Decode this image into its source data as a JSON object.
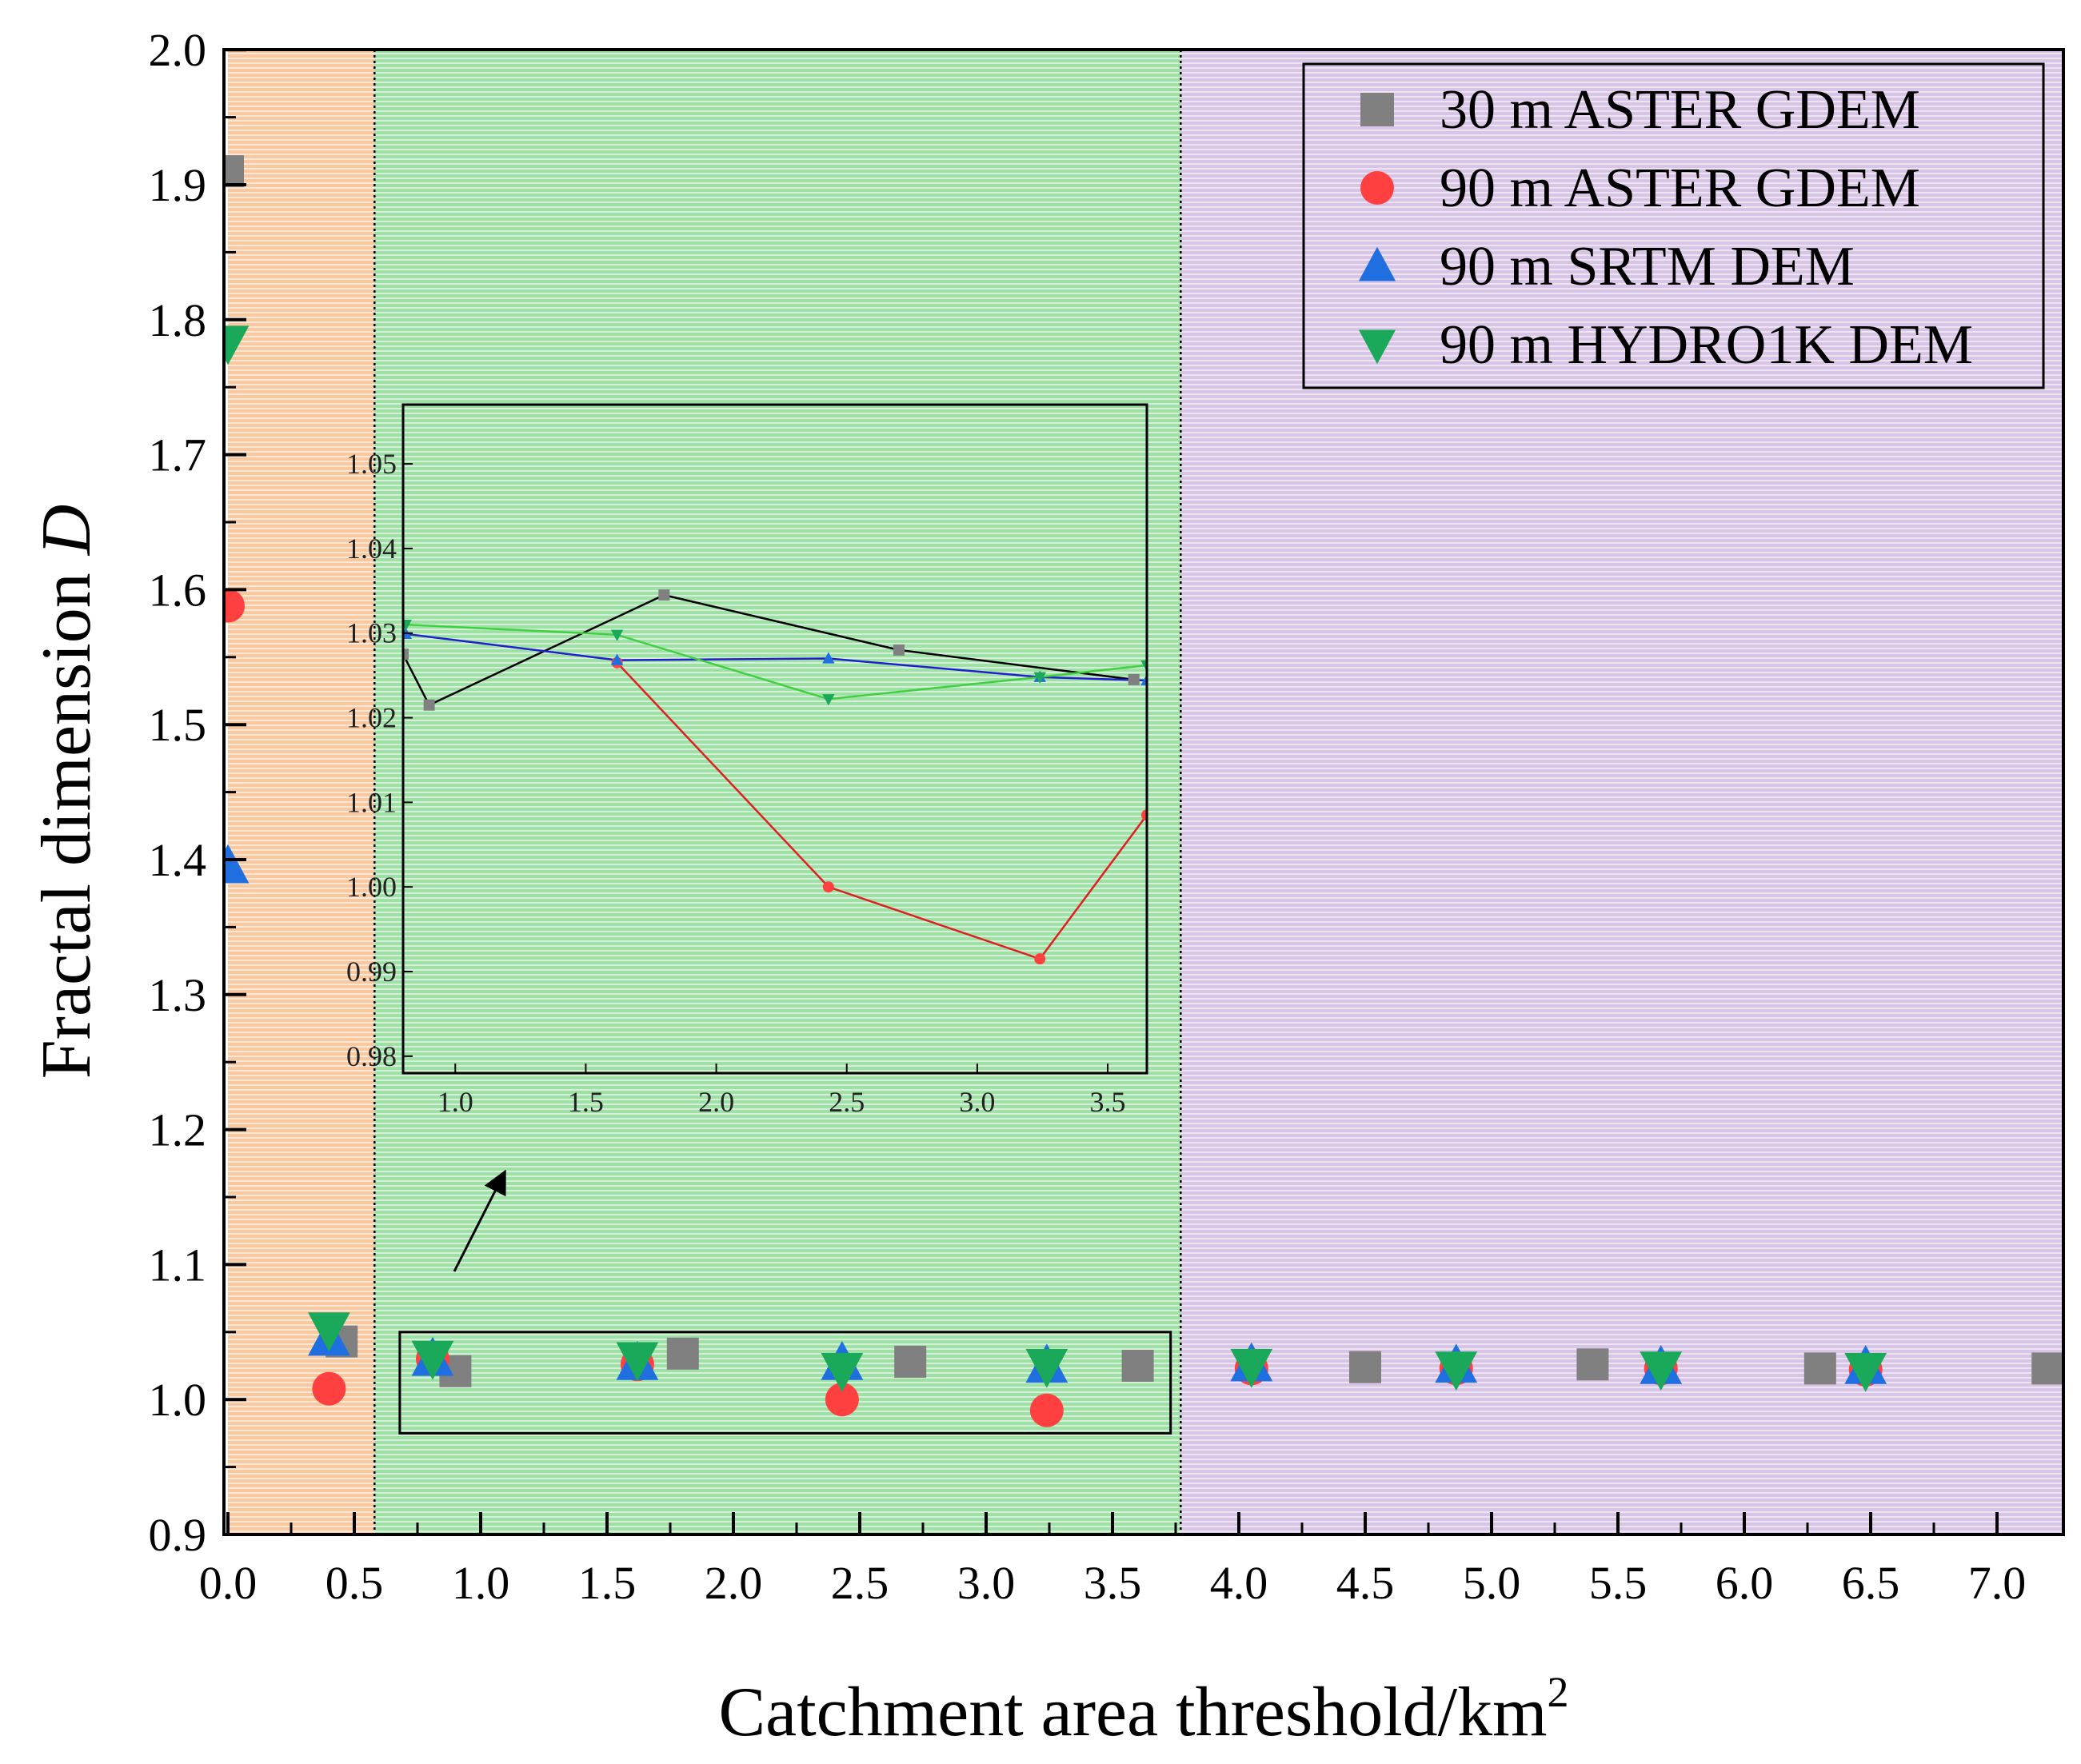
{
  "chart_data": {
    "type": "scatter",
    "title": "",
    "xlabel": "Catchment area threshold/km",
    "xlabel_sup": "2",
    "ylabel": "Fractal dimension ",
    "ylabel_italic": "D",
    "xlim": [
      0,
      7.3
    ],
    "ylim": [
      0.9,
      2.0
    ],
    "xticks": [
      "0.0",
      "0.5",
      "1.0",
      "1.5",
      "2.0",
      "2.5",
      "3.0",
      "3.5",
      "4.0",
      "4.5",
      "5.0",
      "5.5",
      "6.0",
      "6.5",
      "7.0"
    ],
    "yticks": [
      "0.9",
      "1.0",
      "1.1",
      "1.2",
      "1.3",
      "1.4",
      "1.5",
      "1.6",
      "1.7",
      "1.8",
      "1.9",
      "2.0"
    ],
    "regions": [
      {
        "from": 0.0,
        "to": 0.58,
        "color": "#f8c8a0"
      },
      {
        "from": 0.58,
        "to": 3.77,
        "color": "#9fe0a6"
      },
      {
        "from": 3.77,
        "to": 7.3,
        "color": "#d8c4e4"
      }
    ],
    "series": [
      {
        "name": "30 m ASTER GDEM",
        "marker": "square",
        "color": "#808080",
        "x": [
          0.0,
          0.45,
          0.9,
          1.8,
          2.7,
          3.6,
          4.5,
          5.4,
          6.3,
          7.2
        ],
        "y": [
          1.91,
          1.043,
          1.021,
          1.034,
          1.028,
          1.025,
          1.024,
          1.026,
          1.023,
          1.023
        ]
      },
      {
        "name": "90 m ASTER GDEM",
        "marker": "circle",
        "color": "#ff4040",
        "x": [
          0.0,
          0.4,
          0.81,
          1.62,
          2.43,
          3.24,
          4.05,
          4.86,
          5.67,
          6.48
        ],
        "y": [
          1.588,
          1.008,
          1.03,
          1.026,
          1.0,
          0.992,
          1.023,
          1.023,
          1.023,
          1.022
        ]
      },
      {
        "name": "90 m SRTM DEM",
        "marker": "triangle-up",
        "color": "#1f6fe0",
        "x": [
          0.0,
          0.4,
          0.81,
          1.62,
          2.43,
          3.24,
          4.05,
          4.86,
          5.67,
          6.48
        ],
        "y": [
          1.395,
          1.045,
          1.03,
          1.027,
          1.027,
          1.025,
          1.026,
          1.025,
          1.024,
          1.024
        ]
      },
      {
        "name": "90 m HYDRO1K DEM",
        "marker": "triangle-down",
        "color": "#1aa85a",
        "x": [
          0.0,
          0.4,
          0.81,
          1.62,
          2.43,
          3.24,
          4.05,
          4.86,
          5.67,
          6.48
        ],
        "y": [
          1.783,
          1.052,
          1.031,
          1.03,
          1.022,
          1.025,
          1.025,
          1.023,
          1.023,
          1.022
        ]
      }
    ],
    "zoom_box": {
      "xlim": [
        0.68,
        3.73
      ],
      "ylim": [
        0.975,
        1.05
      ]
    },
    "legend_position": "top-right",
    "inset": {
      "xlim": [
        0.8,
        3.65
      ],
      "ylim": [
        0.978,
        1.057
      ],
      "xticks": [
        "1.0",
        "1.5",
        "2.0",
        "2.5",
        "3.0",
        "3.5"
      ],
      "yticks": [
        "0.98",
        "0.99",
        "1.00",
        "1.01",
        "1.02",
        "1.03",
        "1.04",
        "1.05"
      ],
      "series": [
        {
          "name": "30 m ASTER GDEM",
          "marker": "square",
          "color": "#808080",
          "line_color": "#000000",
          "x": [
            0.8,
            0.9,
            1.8,
            2.7,
            3.6
          ],
          "y": [
            1.0275,
            1.0215,
            1.0345,
            1.028,
            1.0245
          ]
        },
        {
          "name": "90 m ASTER GDEM",
          "marker": "circle",
          "color": "#ff4040",
          "line_color": "#e02020",
          "x": [
            1.62,
            2.43,
            3.24,
            3.65
          ],
          "y": [
            1.0265,
            1.0,
            0.9915,
            1.0085
          ]
        },
        {
          "name": "90 m SRTM DEM",
          "marker": "triangle-up",
          "color": "#1f6fe0",
          "line_color": "#2020cc",
          "x": [
            0.81,
            1.62,
            2.43,
            3.24,
            3.65
          ],
          "y": [
            1.0299,
            1.0268,
            1.027,
            1.0248,
            1.0244
          ]
        },
        {
          "name": "90 m HYDRO1K DEM",
          "marker": "triangle-down",
          "color": "#1aa85a",
          "line_color": "#40d040",
          "x": [
            0.81,
            1.62,
            2.43,
            3.24,
            3.65
          ],
          "y": [
            1.031,
            1.0298,
            1.0222,
            1.0248,
            1.0262
          ]
        }
      ]
    }
  }
}
